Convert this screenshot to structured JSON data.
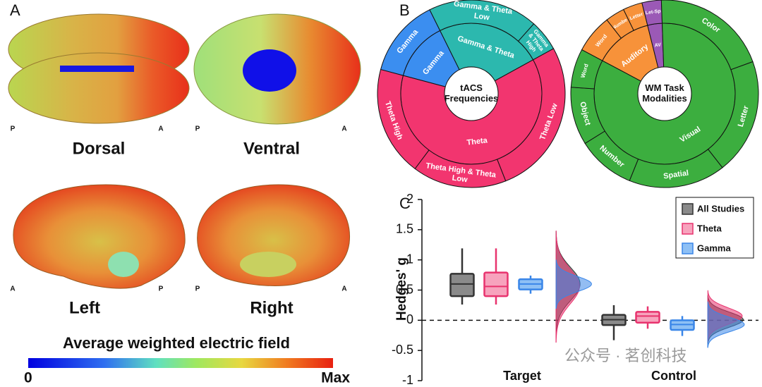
{
  "panel_labels": [
    "A",
    "B",
    "C"
  ],
  "panel_a": {
    "views": [
      {
        "name": "Dorsal",
        "left": "P",
        "right": "A"
      },
      {
        "name": "Ventral",
        "left": "P",
        "right": "A"
      },
      {
        "name": "Left",
        "left": "A",
        "right": "P"
      },
      {
        "name": "Right",
        "left": "P",
        "right": "A"
      }
    ],
    "colorbar": {
      "title": "Average weighted electric field",
      "min_label": "0",
      "max_label": "Max"
    }
  },
  "watermark": "公众号 · 茗创科技",
  "chart_data": [
    {
      "type": "sunburst",
      "center_label": "tACS Frequencies",
      "rings": [
        {
          "categories": [
            "Gamma",
            "Gamma & Theta",
            "Theta"
          ],
          "values": [
            5,
            9,
            23
          ],
          "colors": [
            "#3b8ef0",
            "#2cb8ae",
            "#f2356f"
          ]
        },
        {
          "categories": [
            "Gamma",
            "Gamma & Theta Low",
            "Gamma & Theta High",
            "Theta Low",
            "Theta High & Theta Low",
            "Theta High"
          ],
          "values": [
            5,
            7,
            2,
            10,
            6,
            7
          ],
          "colors": [
            "#3b8ef0",
            "#2cb8ae",
            "#2cb8ae",
            "#f2356f",
            "#f2356f",
            "#f2356f"
          ]
        }
      ]
    },
    {
      "type": "sunburst",
      "center_label": "WM Task Modalities",
      "rings": [
        {
          "categories": [
            "Auditory",
            "AV",
            "Visual"
          ],
          "values": [
            4,
            1,
            25
          ],
          "colors": [
            "#f7923a",
            "#9b59b6",
            "#3cae3f"
          ]
        },
        {
          "categories": [
            "Word",
            "Number",
            "Letter",
            "Let-Sp",
            "Color",
            "Letter",
            "Spatial",
            "Number",
            "Object",
            "Word"
          ],
          "values": [
            2,
            1,
            1,
            1,
            6,
            6,
            5,
            3,
            3,
            2
          ],
          "colors": [
            "#f7923a",
            "#f7923a",
            "#f7923a",
            "#9b59b6",
            "#3cae3f",
            "#3cae3f",
            "#3cae3f",
            "#3cae3f",
            "#3cae3f",
            "#3cae3f"
          ]
        }
      ]
    },
    {
      "type": "box",
      "ylabel": "Hedges' g",
      "categories": [
        "Target",
        "Control"
      ],
      "ylim": [
        -1,
        2
      ],
      "yticks": [
        -1,
        -0.5,
        0,
        0.5,
        1,
        1.5,
        2
      ],
      "hline": 0,
      "legend": "top-right",
      "series": [
        {
          "name": "All Studies",
          "color": "#333333",
          "fill": "#8a8a8a",
          "values": [
            {
              "whisker_low": 0.26,
              "q1": 0.4,
              "median": 0.6,
              "q3": 0.77,
              "whisker_high": 1.19
            },
            {
              "whisker_low": -0.33,
              "q1": -0.08,
              "median": 0.01,
              "q3": 0.09,
              "whisker_high": 0.25
            }
          ]
        },
        {
          "name": "Theta",
          "color": "#e8336e",
          "fill": "#f7a3bd",
          "values": [
            {
              "whisker_low": 0.26,
              "q1": 0.4,
              "median": 0.56,
              "q3": 0.79,
              "whisker_high": 1.19
            },
            {
              "whisker_low": -0.14,
              "q1": -0.04,
              "median": 0.07,
              "q3": 0.14,
              "whisker_high": 0.23
            }
          ]
        },
        {
          "name": "Gamma",
          "color": "#3a86e8",
          "fill": "#8ec0f5",
          "values": [
            {
              "whisker_low": 0.44,
              "q1": 0.51,
              "median": 0.6,
              "q3": 0.68,
              "whisker_high": 0.74
            },
            {
              "whisker_low": -0.26,
              "q1": -0.16,
              "median": -0.07,
              "q3": 0,
              "whisker_high": 0.07
            }
          ]
        }
      ]
    }
  ]
}
